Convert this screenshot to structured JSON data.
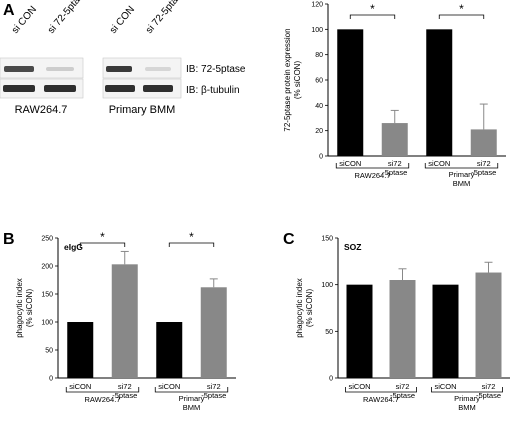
{
  "panel_letters": [
    "A",
    "B",
    "C"
  ],
  "blot": {
    "lanes_left": [
      "si CON",
      "si 72-5ptase"
    ],
    "lanes_right": [
      "si CON",
      "si 72-5ptase"
    ],
    "ib_labels": [
      "IB: 72-5ptase",
      "IB: β-tubulin"
    ],
    "cell_labels": [
      "RAW264.7",
      "Primary BMM"
    ]
  },
  "chart_data": [
    {
      "type": "bar",
      "title": "",
      "ylabel": "72-5ptase protein expression (% siCON)",
      "ylim": [
        0,
        120
      ],
      "yticks": [
        0,
        20,
        40,
        60,
        80,
        100,
        120
      ],
      "categories": [
        "siCON",
        "si72-5ptase",
        "siCON",
        "si72-5ptase"
      ],
      "groups": [
        "RAW264.7",
        "Primary BMM"
      ],
      "values": [
        100,
        26,
        100,
        21
      ],
      "errors": [
        0,
        10,
        0,
        20
      ],
      "colors": [
        "#000000",
        "#888888",
        "#000000",
        "#888888"
      ],
      "significance": [
        "*",
        "*"
      ]
    },
    {
      "type": "bar",
      "title": "eIgG",
      "ylabel": "phagocytic index (% siCON)",
      "ylim": [
        0,
        250
      ],
      "yticks": [
        0,
        50,
        100,
        150,
        200,
        250
      ],
      "categories": [
        "siCON",
        "si72-5ptase",
        "siCON",
        "si72-5ptase"
      ],
      "groups": [
        "RAW264.7",
        "Primary BMM"
      ],
      "values": [
        100,
        203,
        100,
        162
      ],
      "errors": [
        0,
        23,
        0,
        15
      ],
      "colors": [
        "#000000",
        "#888888",
        "#000000",
        "#888888"
      ],
      "significance": [
        "*",
        "*"
      ]
    },
    {
      "type": "bar",
      "title": "SOZ",
      "ylabel": "phagocytic index (% siCON)",
      "ylim": [
        0,
        150
      ],
      "yticks": [
        0,
        50,
        100,
        150
      ],
      "categories": [
        "siCON",
        "si72-5ptase",
        "siCON",
        "si72-5ptase"
      ],
      "groups": [
        "RAW264.7",
        "Primary BMM"
      ],
      "values": [
        100,
        105,
        100,
        113
      ],
      "errors": [
        0,
        12,
        0,
        11
      ],
      "colors": [
        "#000000",
        "#888888",
        "#000000",
        "#888888"
      ],
      "significance": []
    }
  ]
}
